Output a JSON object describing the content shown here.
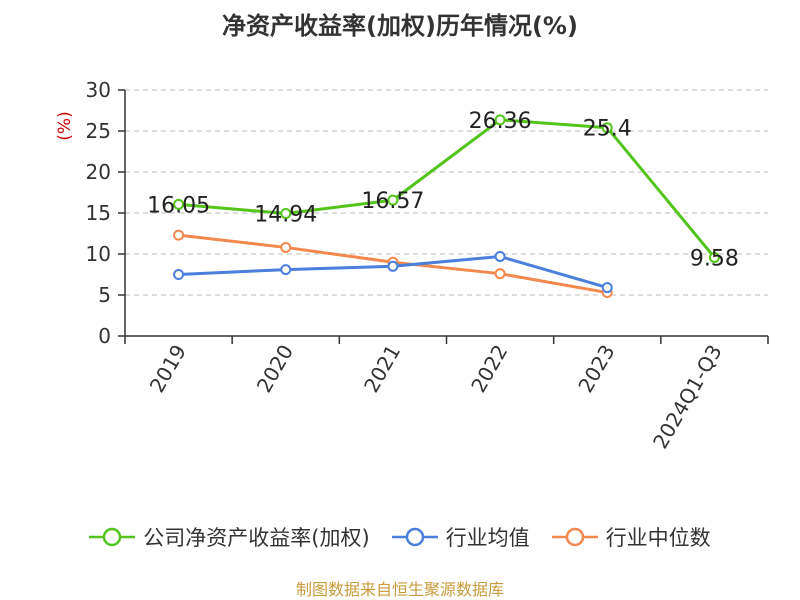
{
  "chart_data": {
    "type": "line",
    "title": "净资产收益率(加权)历年情况(%)",
    "ylabel": "(%)",
    "xlabel": "",
    "categories": [
      "2019",
      "2020",
      "2021",
      "2022",
      "2023",
      "2024Q1-Q3"
    ],
    "ylim": [
      0,
      30
    ],
    "yticks": [
      0,
      5,
      10,
      15,
      20,
      25,
      30
    ],
    "grid": true,
    "legend_position": "bottom",
    "series": [
      {
        "name": "公司净资产收益率(加权)",
        "color": "#52c41a",
        "values": [
          16.05,
          14.94,
          16.57,
          26.36,
          25.4,
          9.58
        ],
        "labels": [
          "16.05",
          "14.94",
          "16.57",
          "26.36",
          "25.4",
          "9.58"
        ]
      },
      {
        "name": "行业均值",
        "color": "#4a7fdc",
        "values": [
          7.5,
          8.1,
          8.5,
          9.7,
          5.9,
          null
        ]
      },
      {
        "name": "行业中位数",
        "color": "#f4894e",
        "values": [
          12.3,
          10.8,
          9.0,
          7.6,
          5.3,
          null
        ]
      }
    ]
  },
  "footer": {
    "source": "制图数据来自恒生聚源数据库"
  }
}
